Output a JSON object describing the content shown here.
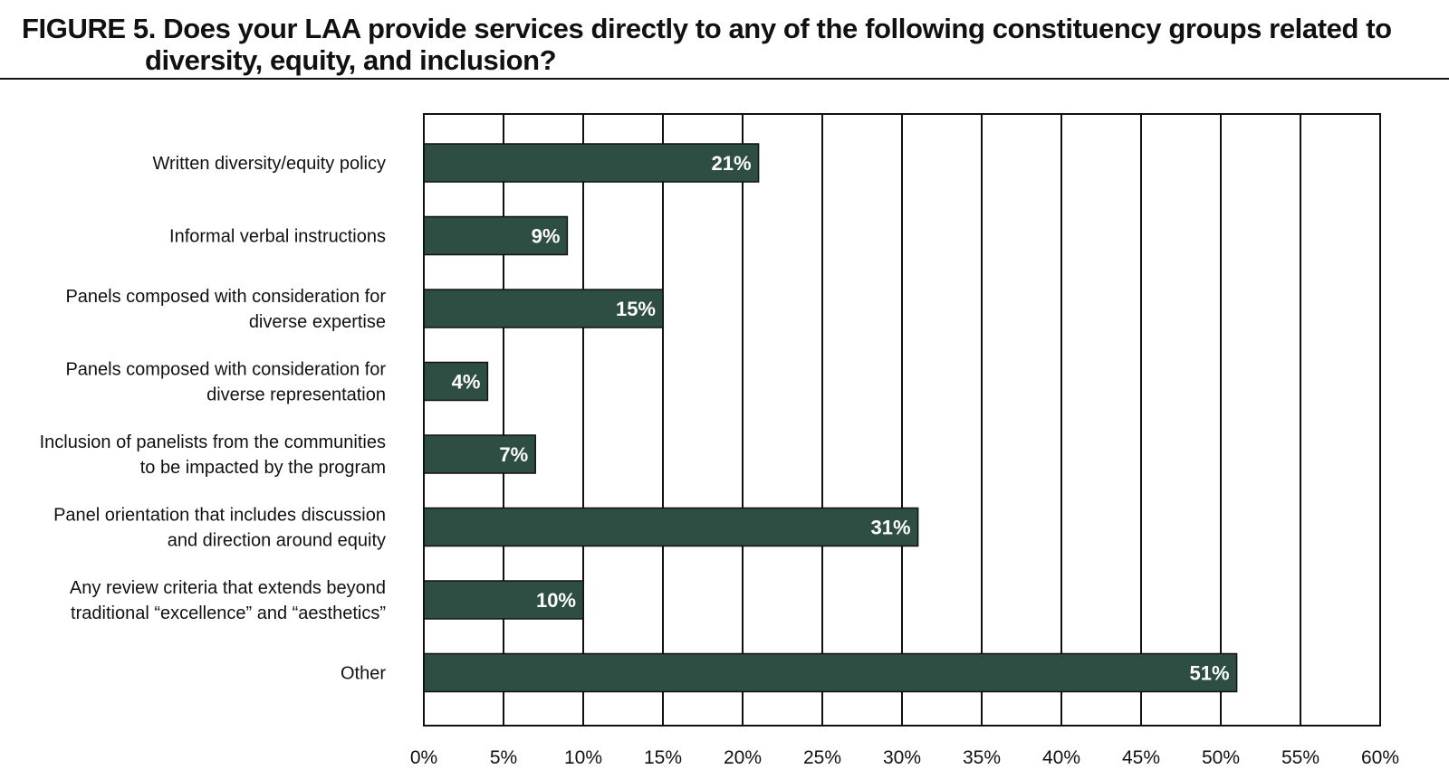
{
  "figure_label": "FIGURE 5.",
  "title_line1": "Does your LAA provide services directly to any of the following constituency groups related to",
  "title_line2": "diversity, equity, and inclusion?",
  "colors": {
    "bar_fill": "#2e4d43",
    "bar_stroke": "#111111",
    "grid": "#111111",
    "data_label": "#ffffff"
  },
  "chart_data": {
    "type": "bar",
    "orientation": "horizontal",
    "categories": [
      [
        "Written diversity/equity policy"
      ],
      [
        "Informal verbal instructions"
      ],
      [
        "Panels composed with consideration for",
        "diverse expertise"
      ],
      [
        "Panels composed with consideration for",
        "diverse representation"
      ],
      [
        "Inclusion of panelists from the communities",
        "to be impacted by the program"
      ],
      [
        "Panel orientation that includes discussion",
        "and direction around equity"
      ],
      [
        "Any review criteria that extends beyond",
        "traditional “excellence” and “aesthetics”"
      ],
      [
        "Other"
      ]
    ],
    "values": [
      21,
      9,
      15,
      4,
      7,
      31,
      10,
      51
    ],
    "data_labels": [
      "21%",
      "9%",
      "15%",
      "4%",
      "7%",
      "31%",
      "10%",
      "51%"
    ],
    "xlim": [
      0,
      60
    ],
    "xticks": [
      0,
      5,
      10,
      15,
      20,
      25,
      30,
      35,
      40,
      45,
      50,
      55,
      60
    ],
    "xtick_labels": [
      "0%",
      "5%",
      "10%",
      "15%",
      "20%",
      "25%",
      "30%",
      "35%",
      "40%",
      "45%",
      "50%",
      "55%",
      "60%"
    ],
    "grid": true,
    "legend": "none"
  }
}
